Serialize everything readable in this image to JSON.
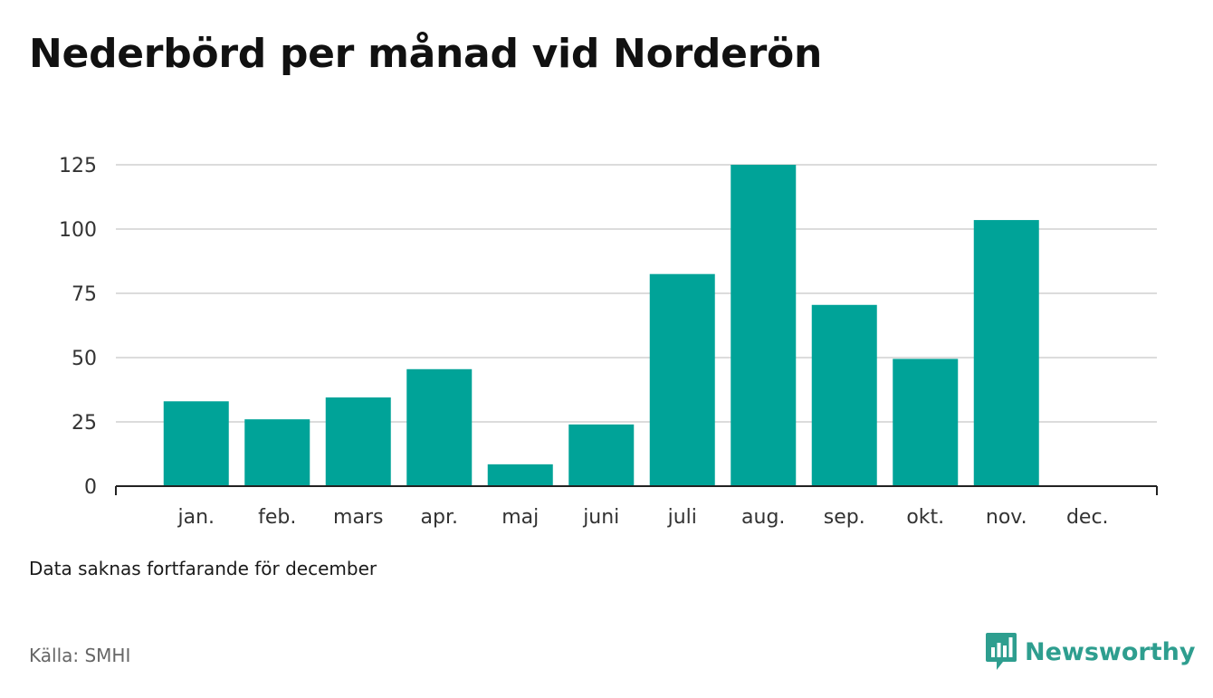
{
  "title": "Nederbörd per månad vid Norderön",
  "note": "Data saknas fortfarande för december",
  "source": "Källa: SMHI",
  "brand": {
    "name": "Newsworthy",
    "icon": "newsworthy-logo-icon",
    "color": "#2e9e8f"
  },
  "chart_data": {
    "type": "bar",
    "categories": [
      "jan.",
      "feb.",
      "mars",
      "apr.",
      "maj",
      "juni",
      "juli",
      "aug.",
      "sep.",
      "okt.",
      "nov.",
      "dec."
    ],
    "values": [
      33,
      26,
      34.5,
      45.5,
      8.5,
      24,
      82.5,
      125,
      70.5,
      49.5,
      103.5,
      null
    ],
    "yticks": [
      0,
      25,
      50,
      75,
      100,
      125
    ],
    "ylim": [
      0,
      125
    ],
    "grid": true,
    "bar_color": "#00a398",
    "title": "Nederbörd per månad vid Norderön",
    "xlabel": "",
    "ylabel": ""
  }
}
